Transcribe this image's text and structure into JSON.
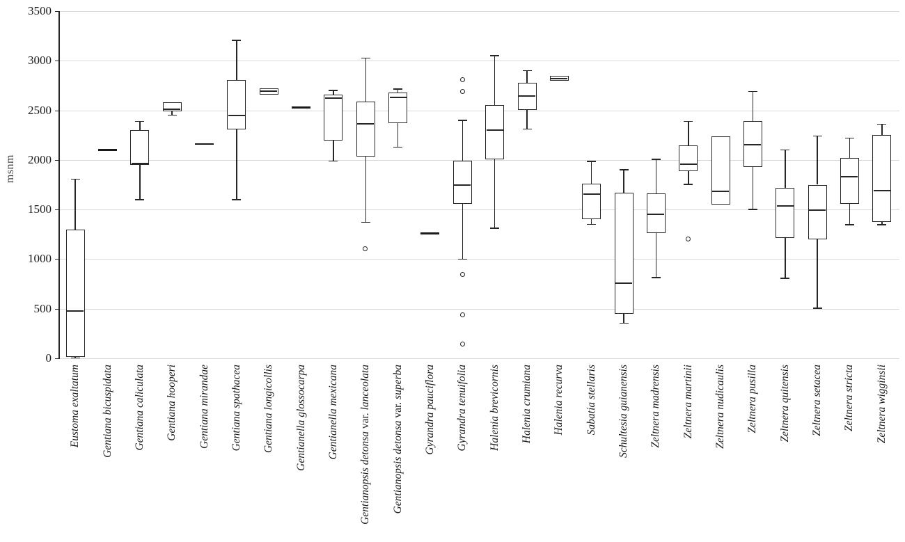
{
  "colors": {
    "stroke": "#262626",
    "grid": "#d9d9d9",
    "background": "#ffffff"
  },
  "chart_data": {
    "type": "boxplot",
    "title": "",
    "xlabel": "",
    "ylabel": "msnm",
    "ylim": [
      0,
      3500
    ],
    "ytick_step": 500,
    "ytick_labels": [
      "0",
      "500",
      "1000",
      "1500",
      "2000",
      "2500",
      "3000",
      "3500"
    ],
    "grid": "horizontal",
    "legend": "none",
    "series": [
      {
        "label": "Eustoma exaltatum",
        "low": 5,
        "q1": 15,
        "median": 480,
        "q3": 1300,
        "high": 1805,
        "outliers": []
      },
      {
        "label": "Gentiana bicuspidata",
        "low": 2100,
        "q1": 2100,
        "median": 2100,
        "q3": 2100,
        "high": 2100,
        "outliers": []
      },
      {
        "label": "Gentiana caliculata",
        "low": 1600,
        "q1": 1950,
        "median": 1965,
        "q3": 2300,
        "high": 2390,
        "outliers": []
      },
      {
        "label": "Gentiana hooperi",
        "low": 2450,
        "q1": 2490,
        "median": 2510,
        "q3": 2580,
        "high": 2580,
        "outliers": []
      },
      {
        "label": "Gentiana mirandae",
        "low": 2160,
        "q1": 2160,
        "median": 2160,
        "q3": 2160,
        "high": 2160,
        "outliers": []
      },
      {
        "label": "Gentiana spathacea",
        "low": 1600,
        "q1": 2305,
        "median": 2450,
        "q3": 2805,
        "high": 3205,
        "outliers": []
      },
      {
        "label": "Gentiana longicollis",
        "low": 2660,
        "q1": 2660,
        "median": 2690,
        "q3": 2720,
        "high": 2720,
        "outliers": []
      },
      {
        "label": "Gentianella glossocarpa",
        "low": 2530,
        "q1": 2530,
        "median": 2530,
        "q3": 2530,
        "high": 2530,
        "outliers": []
      },
      {
        "label": "Gentianella mexicana",
        "low": 1990,
        "q1": 2195,
        "median": 2620,
        "q3": 2660,
        "high": 2700,
        "outliers": []
      },
      {
        "label": "Gentianopsis detonsa var. lanceolata",
        "low": 1370,
        "q1": 2035,
        "median": 2365,
        "q3": 2590,
        "high": 3025,
        "outliers": [
          1100
        ]
      },
      {
        "label": "Gentianopsis detonsa var. superba",
        "low": 2130,
        "q1": 2370,
        "median": 2630,
        "q3": 2680,
        "high": 2715,
        "outliers": []
      },
      {
        "label": "Gyrandra pauciflora",
        "low": 1260,
        "q1": 1260,
        "median": 1260,
        "q3": 1260,
        "high": 1260,
        "outliers": []
      },
      {
        "label": "Gyrandra tenuifolia",
        "low": 1000,
        "q1": 1555,
        "median": 1745,
        "q3": 1990,
        "high": 2400,
        "outliers": [
          2810,
          2690,
          840,
          435,
          140
        ]
      },
      {
        "label": "Halenia brevicornis",
        "low": 1310,
        "q1": 2005,
        "median": 2300,
        "q3": 2550,
        "high": 3050,
        "outliers": []
      },
      {
        "label": "Halenia crumiana",
        "low": 2310,
        "q1": 2505,
        "median": 2645,
        "q3": 2775,
        "high": 2900,
        "outliers": []
      },
      {
        "label": "Halenia recurva",
        "low": 2800,
        "q1": 2800,
        "median": 2822,
        "q3": 2845,
        "high": 2845,
        "outliers": []
      },
      {
        "label": "Sabatia stellaris",
        "low": 1350,
        "q1": 1400,
        "median": 1655,
        "q3": 1760,
        "high": 1985,
        "outliers": []
      },
      {
        "label": "Schultesia guianensis",
        "low": 355,
        "q1": 450,
        "median": 755,
        "q3": 1670,
        "high": 1900,
        "outliers": []
      },
      {
        "label": "Zeltnera madrensis",
        "low": 815,
        "q1": 1260,
        "median": 1450,
        "q3": 1660,
        "high": 2005,
        "outliers": []
      },
      {
        "label": "Zeltnera martinii",
        "low": 1755,
        "q1": 1885,
        "median": 1955,
        "q3": 2145,
        "high": 2390,
        "outliers": [
          1200
        ]
      },
      {
        "label": "Zeltnera nudicaulis",
        "low": 1550,
        "q1": 1550,
        "median": 1685,
        "q3": 2240,
        "high": 2240,
        "outliers": []
      },
      {
        "label": "Zeltnera pusilla",
        "low": 1500,
        "q1": 1930,
        "median": 2150,
        "q3": 2390,
        "high": 2690,
        "outliers": []
      },
      {
        "label": "Zeltnera quitensis",
        "low": 805,
        "q1": 1210,
        "median": 1535,
        "q3": 1720,
        "high": 2100,
        "outliers": []
      },
      {
        "label": "Zeltnera setacea",
        "low": 505,
        "q1": 1200,
        "median": 1495,
        "q3": 1750,
        "high": 2240,
        "outliers": []
      },
      {
        "label": "Zeltnera stricta",
        "low": 1345,
        "q1": 1555,
        "median": 1830,
        "q3": 2020,
        "high": 2220,
        "outliers": []
      },
      {
        "label": "Zeltnera wigginsii",
        "low": 1345,
        "q1": 1375,
        "median": 1690,
        "q3": 2255,
        "high": 2360,
        "outliers": []
      }
    ]
  }
}
